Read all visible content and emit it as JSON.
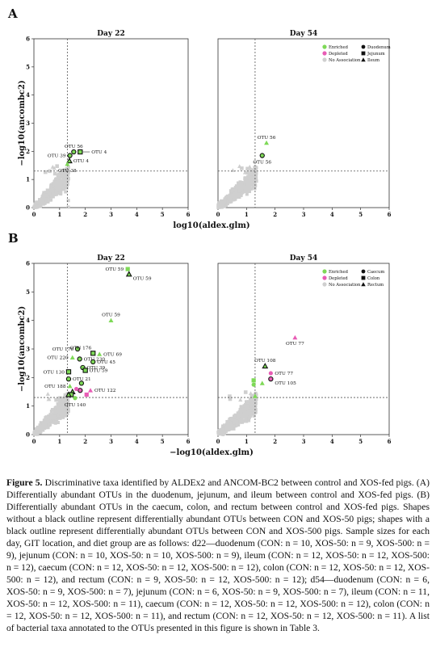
{
  "figure": {
    "panels": [
      {
        "letter": "A",
        "ylabel": "−log10(ancombc2)",
        "xlabel": "log10(aldex.glm)",
        "facets": [
          {
            "title": "Day 22",
            "show_y_ticks": true,
            "points": [
              {
                "x": 1.4,
                "y": 1.85,
                "cat": "Enriched",
                "shape": "circle",
                "outline": true,
                "label": "OTU 39",
                "label_pos": "left"
              },
              {
                "x": 1.55,
                "y": 1.98,
                "cat": "Enriched",
                "shape": "circle",
                "outline": true,
                "label": "OTU 56",
                "label_pos": "top"
              },
              {
                "x": 1.8,
                "y": 1.98,
                "cat": "Enriched",
                "shape": "square",
                "outline": true,
                "label": "OTU 4",
                "label_pos": "right-arrow"
              },
              {
                "x": 1.38,
                "y": 1.66,
                "cat": "Enriched",
                "shape": "triangle",
                "outline": true,
                "label": "OTU 4",
                "label_pos": "right"
              },
              {
                "x": 1.3,
                "y": 1.55,
                "cat": "Enriched",
                "shape": "triangle",
                "outline": false,
                "label": "OTU 38",
                "label_pos": "bottom"
              }
            ]
          },
          {
            "title": "Day 54",
            "show_y_ticks": false,
            "points": [
              {
                "x": 1.7,
                "y": 2.3,
                "cat": "Enriched",
                "shape": "triangle",
                "outline": false,
                "label": "OTU 56",
                "label_pos": "top"
              },
              {
                "x": 1.55,
                "y": 1.85,
                "cat": "Enriched",
                "shape": "circle",
                "outline": true,
                "label": "OTU 56",
                "label_pos": "bottom"
              }
            ]
          }
        ],
        "legend": {
          "categories": [
            "Enriched",
            "Depleted",
            "No Association"
          ],
          "shapes": [
            "Duodenum",
            "Jejunum",
            "Ileum"
          ]
        }
      },
      {
        "letter": "B",
        "ylabel": "−log10(ancombc2)",
        "xlabel": "−log10(aldex.glm)",
        "facets": [
          {
            "title": "Day 22",
            "show_y_ticks": true,
            "points": [
              {
                "x": 3.65,
                "y": 5.8,
                "cat": "Enriched",
                "shape": "square",
                "outline": false,
                "label": "OTU 59",
                "label_pos": "left"
              },
              {
                "x": 3.7,
                "y": 5.62,
                "cat": "Enriched",
                "shape": "triangle",
                "outline": true,
                "label": "OTU 59",
                "label_pos": "right-low"
              },
              {
                "x": 3.0,
                "y": 4.0,
                "cat": "Enriched",
                "shape": "triangle",
                "outline": false,
                "label": "OTU 59",
                "label_pos": "top"
              },
              {
                "x": 1.7,
                "y": 3.0,
                "cat": "Enriched",
                "shape": "circle",
                "outline": true,
                "label": "OTU 176",
                "label_pos": "left"
              },
              {
                "x": 2.3,
                "y": 2.85,
                "cat": "Enriched",
                "shape": "square",
                "outline": true,
                "label": "OTU 176",
                "label_pos": "topleft"
              },
              {
                "x": 2.55,
                "y": 2.82,
                "cat": "Enriched",
                "shape": "triangle",
                "outline": false,
                "label": "OTU 69",
                "label_pos": "right"
              },
              {
                "x": 1.5,
                "y": 2.7,
                "cat": "Enriched",
                "shape": "triangle",
                "outline": false,
                "label": "OTU 220",
                "label_pos": "left"
              },
              {
                "x": 1.78,
                "y": 2.65,
                "cat": "Enriched",
                "shape": "circle",
                "outline": true,
                "label": "OTU 230",
                "label_pos": "right"
              },
              {
                "x": 2.3,
                "y": 2.55,
                "cat": "Enriched",
                "shape": "circle",
                "outline": true,
                "label": "OTU 45",
                "label_pos": "right"
              },
              {
                "x": 1.9,
                "y": 2.35,
                "cat": "Enriched",
                "shape": "circle",
                "outline": true,
                "label": "OTU 39",
                "label_pos": "right"
              },
              {
                "x": 2.0,
                "y": 2.25,
                "cat": "Enriched",
                "shape": "square",
                "outline": true,
                "label": "OTU 59",
                "label_pos": "right"
              },
              {
                "x": 1.35,
                "y": 2.2,
                "cat": "Enriched",
                "shape": "square",
                "outline": true,
                "label": "OTU 130",
                "label_pos": "left"
              },
              {
                "x": 1.35,
                "y": 1.95,
                "cat": "Enriched",
                "shape": "circle",
                "outline": true,
                "label": "OTU 21",
                "label_pos": "right"
              },
              {
                "x": 1.85,
                "y": 1.8,
                "cat": "Enriched",
                "shape": "circle",
                "outline": true,
                "label": "",
                "label_pos": "none"
              },
              {
                "x": 1.4,
                "y": 1.7,
                "cat": "Enriched",
                "shape": "triangle",
                "outline": false,
                "label": "OTU 188",
                "label_pos": "left"
              },
              {
                "x": 2.2,
                "y": 1.55,
                "cat": "Depleted",
                "shape": "triangle",
                "outline": false,
                "label": "OTU 122",
                "label_pos": "right"
              },
              {
                "x": 1.8,
                "y": 1.55,
                "cat": "Depleted",
                "shape": "circle",
                "outline": true,
                "label": "",
                "label_pos": "none"
              },
              {
                "x": 1.5,
                "y": 1.5,
                "cat": "Enriched",
                "shape": "triangle",
                "outline": true,
                "label": "",
                "label_pos": "none"
              },
              {
                "x": 1.45,
                "y": 1.4,
                "cat": "Enriched",
                "shape": "square",
                "outline": true,
                "label": "",
                "label_pos": "none"
              },
              {
                "x": 1.35,
                "y": 1.4,
                "cat": "Enriched",
                "shape": "triangle",
                "outline": true,
                "label": "",
                "label_pos": "none"
              },
              {
                "x": 1.6,
                "y": 1.28,
                "cat": "Enriched",
                "shape": "circle",
                "outline": false,
                "label": "OTU 140",
                "label_pos": "bottom"
              },
              {
                "x": 2.05,
                "y": 1.4,
                "cat": "Depleted",
                "shape": "square",
                "outline": false,
                "label": "",
                "label_pos": "none"
              },
              {
                "x": 1.65,
                "y": 1.6,
                "cat": "Depleted",
                "shape": "circle",
                "outline": false,
                "label": "",
                "label_pos": "none"
              }
            ]
          },
          {
            "title": "Day 54",
            "show_y_ticks": false,
            "points": [
              {
                "x": 2.7,
                "y": 3.4,
                "cat": "Depleted",
                "shape": "triangle",
                "outline": false,
                "label": "OTU 77",
                "label_pos": "below"
              },
              {
                "x": 1.65,
                "y": 2.4,
                "cat": "Enriched",
                "shape": "triangle",
                "outline": true,
                "label": "OTU 108",
                "label_pos": "top"
              },
              {
                "x": 1.85,
                "y": 2.15,
                "cat": "Depleted",
                "shape": "circle",
                "outline": false,
                "label": "OTU 77",
                "label_pos": "right"
              },
              {
                "x": 1.85,
                "y": 1.95,
                "cat": "Depleted",
                "shape": "circle",
                "outline": true,
                "label": "OTU 105",
                "label_pos": "right-low"
              },
              {
                "x": 1.25,
                "y": 1.9,
                "cat": "Enriched",
                "shape": "square",
                "outline": false,
                "label": "",
                "label_pos": "none"
              },
              {
                "x": 1.25,
                "y": 1.75,
                "cat": "Enriched",
                "shape": "circle",
                "outline": false,
                "label": "",
                "label_pos": "none"
              },
              {
                "x": 1.55,
                "y": 1.8,
                "cat": "Enriched",
                "shape": "triangle",
                "outline": false,
                "label": "",
                "label_pos": "none"
              },
              {
                "x": 1.3,
                "y": 1.35,
                "cat": "Enriched",
                "shape": "triangle",
                "outline": false,
                "label": "",
                "label_pos": "none"
              }
            ]
          }
        ],
        "legend": {
          "categories": [
            "Enriched",
            "Depleted",
            "No Association"
          ],
          "shapes": [
            "Caecum",
            "Colon",
            "Rectum"
          ]
        }
      }
    ],
    "axes": {
      "x_ticks": [
        "0",
        "1",
        "2",
        "3",
        "4",
        "5",
        "6"
      ],
      "xlim": [
        0,
        6
      ],
      "A_y_ticks": [
        "0",
        "1",
        "2",
        "3",
        "4",
        "5",
        "6"
      ],
      "A_ylim": [
        0,
        6
      ],
      "B_y_ticks": [
        "0",
        "1",
        "2",
        "3",
        "4",
        "5",
        "6"
      ],
      "B_ylim": [
        0,
        6
      ],
      "threshold": 1.3
    },
    "colors": {
      "enriched": "#7ed957",
      "depleted": "#e85cb5",
      "no_association": "#cfcfcf",
      "outline": "#111111",
      "threshold_line": "#555555"
    }
  },
  "caption": {
    "lead": "Figure 5.",
    "text": " Discriminative taxa identified by ALDEx2 and ANCOM-BC2 between control and XOS-fed pigs. (A) Differentially abundant OTUs in the duodenum, jejunum, and ileum between control and XOS-fed pigs. (B) Differentially abundant OTUs in the caecum, colon, and rectum between control and XOS-fed pigs. Shapes without a black outline represent differentially abundant OTUs between CON and XOS-50 pigs; shapes with a black outline represent differentially abundant OTUs between CON and XOS-500 pigs. Sample sizes for each day, GIT location, and diet group are as follows: d22—duodenum (CON: n = 10, XOS-50: n = 9, XOS-500: n = 9), jejunum (CON: n = 10, XOS-50: n = 10, XOS-500: n = 9), ileum (CON: n = 12, XOS-50: n = 12, XOS-500: n = 12), caecum (CON: n = 12, XOS-50: n = 12, XOS-500: n = 12), colon (CON: n = 12, XOS-50: n = 12, XOS-500: n = 12), and rectum (CON: n = 9, XOS-50: n = 12, XOS-500: n = 12); d54—duodenum (CON: n = 6, XOS-50: n = 9, XOS-500: n = 7), jejunum (CON: n = 6, XOS-50: n = 9, XOS-500: n = 7), ileum (CON: n = 11, XOS-50: n = 12, XOS-500: n = 11), caecum (CON: n = 12, XOS-50: n = 12, XOS-500: n = 12), colon (CON: n = 12, XOS-50: n = 12, XOS-500: n = 11), and rectum (CON: n = 12, XOS-50: n = 12, XOS-500: n = 11). A list of bacterial taxa annotated to the OTUs presented in this figure is shown in Table 3."
  }
}
